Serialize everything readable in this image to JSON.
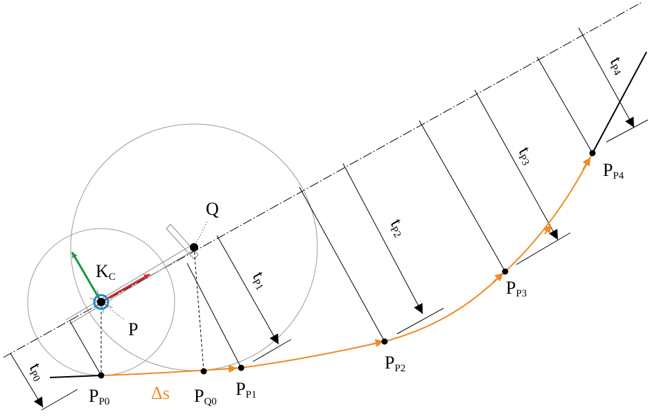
{
  "labels": {
    "kc": {
      "main": "K",
      "sub": "C"
    },
    "p": "P",
    "q": "Q",
    "delta_s": "Δs",
    "pp0": {
      "main": "P",
      "sub": "P0"
    },
    "pq0": {
      "main": "P",
      "sub": "Q0"
    },
    "pp1": {
      "main": "P",
      "sub": "P1"
    },
    "pp2": {
      "main": "P",
      "sub": "P2"
    },
    "pp3": {
      "main": "P",
      "sub": "P3"
    },
    "pp4": {
      "main": "P",
      "sub": "P4"
    },
    "tp0": {
      "main": "t",
      "sub": "P0"
    },
    "tp1": {
      "main": "t",
      "sub": "P1"
    },
    "tp2": {
      "main": "t",
      "sub": "P2"
    },
    "tp3": {
      "main": "t",
      "sub": "P3"
    },
    "tp4": {
      "main": "t",
      "sub": "P4"
    }
  }
}
